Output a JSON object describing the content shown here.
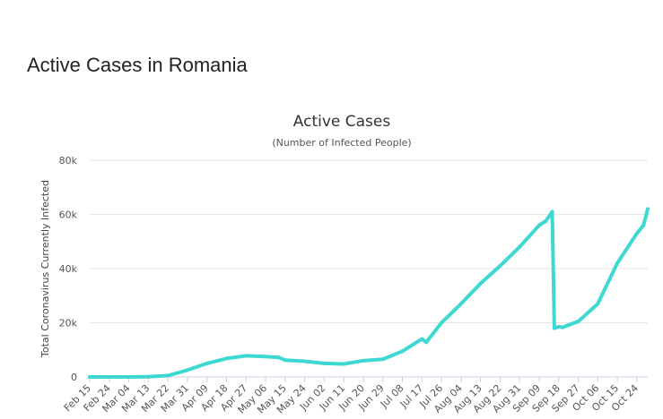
{
  "page": {
    "heading": "Active Cases in Romania"
  },
  "colors": {
    "series": "#3ED8D2",
    "grid": "#e6e6e6",
    "axis": "#c8d2e0",
    "text": "#555555"
  },
  "chart_data": {
    "type": "line",
    "title": "Active Cases",
    "subtitle": "(Number of Infected People)",
    "xlabel": "",
    "ylabel": "Total Coronavirus Currently Infected",
    "ylim": [
      0,
      80000
    ],
    "yticks": [
      0,
      20000,
      40000,
      60000,
      80000
    ],
    "ytick_labels": [
      "0",
      "20k",
      "40k",
      "60k",
      "80k"
    ],
    "categories": [
      "Feb 15",
      "Feb 24",
      "Mar 04",
      "Mar 13",
      "Mar 22",
      "Mar 31",
      "Apr 09",
      "Apr 18",
      "Apr 27",
      "May 06",
      "May 15",
      "May 24",
      "Jun 02",
      "Jun 11",
      "Jun 20",
      "Jun 29",
      "Jul 08",
      "Jul 17",
      "Jul 26",
      "Aug 04",
      "Aug 13",
      "Aug 22",
      "Aug 31",
      "Sep 09",
      "Sep 18",
      "Sep 27",
      "Oct 06",
      "Oct 15",
      "Oct 24"
    ],
    "grid": true,
    "legend": "none",
    "series": [
      {
        "x": [
          "Feb 15",
          "Feb 24",
          "Mar 04",
          "Mar 13",
          "Mar 22",
          "Mar 31",
          "Apr 09",
          "Apr 18",
          "Apr 27",
          "May 06",
          "May 12",
          "May 15",
          "May 24",
          "Jun 02",
          "Jun 11",
          "Jun 20",
          "Jun 29",
          "Jul 08",
          "Jul 17",
          "Jul 19",
          "Jul 26",
          "Aug 04",
          "Aug 13",
          "Aug 22",
          "Aug 31",
          "Sep 09",
          "Sep 12",
          "Sep 15",
          "Sep 16",
          "Sep 18",
          "Sep 20",
          "Sep 22",
          "Sep 27",
          "Oct 06",
          "Oct 15",
          "Oct 24",
          "Oct 27",
          "Oct 29"
        ],
        "values": [
          0,
          0,
          0,
          50,
          500,
          2500,
          5000,
          6800,
          7800,
          7500,
          7200,
          6200,
          5800,
          5000,
          4800,
          6000,
          6500,
          9500,
          14000,
          12800,
          20000,
          27000,
          34500,
          41000,
          48000,
          56000,
          57500,
          61000,
          18000,
          18500,
          18300,
          19000,
          20500,
          27000,
          42000,
          53000,
          56000,
          62000
        ]
      }
    ]
  }
}
